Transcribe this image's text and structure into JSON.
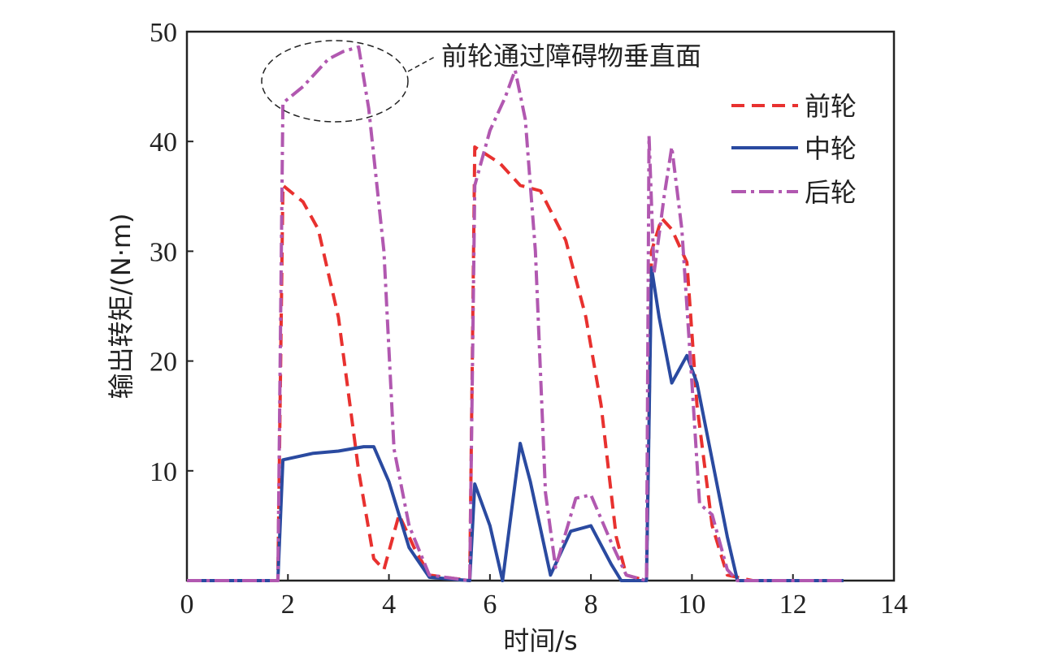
{
  "chart_data": {
    "type": "line",
    "xlabel": "时间/s",
    "ylabel": "输出转矩/(N·m)",
    "xlim": [
      0,
      14
    ],
    "ylim": [
      0,
      50
    ],
    "xticks": [
      0,
      2,
      4,
      6,
      8,
      10,
      12,
      14
    ],
    "yticks": [
      10,
      20,
      30,
      40,
      50
    ],
    "grid": false,
    "legend_position": "top-right",
    "annotation": {
      "text": "前轮通过障碍物垂直面",
      "target_x": 2.95,
      "target_y": 46.5
    },
    "colors": {
      "front": "#e8312f",
      "middle": "#2a4aa0",
      "rear": "#b158b0"
    },
    "series": [
      {
        "name": "前轮",
        "key": "front",
        "style": "dashed",
        "points": [
          [
            0,
            0
          ],
          [
            1.8,
            0
          ],
          [
            1.9,
            36
          ],
          [
            2.3,
            34.5
          ],
          [
            2.6,
            32
          ],
          [
            3.0,
            24
          ],
          [
            3.4,
            10
          ],
          [
            3.7,
            2
          ],
          [
            3.9,
            1
          ],
          [
            4.2,
            6
          ],
          [
            4.5,
            3
          ],
          [
            4.8,
            0.5
          ],
          [
            5.6,
            0
          ],
          [
            5.7,
            39.5
          ],
          [
            6.2,
            38
          ],
          [
            6.6,
            36
          ],
          [
            7.0,
            35.5
          ],
          [
            7.5,
            31
          ],
          [
            7.9,
            24
          ],
          [
            8.2,
            16
          ],
          [
            8.5,
            4
          ],
          [
            8.7,
            0.5
          ],
          [
            9.1,
            0
          ],
          [
            9.2,
            30
          ],
          [
            9.4,
            33
          ],
          [
            9.6,
            32
          ],
          [
            9.9,
            29
          ],
          [
            10.1,
            16
          ],
          [
            10.4,
            5
          ],
          [
            10.7,
            0.5
          ],
          [
            11.2,
            0
          ],
          [
            13.0,
            0
          ]
        ]
      },
      {
        "name": "中轮",
        "key": "middle",
        "style": "solid",
        "points": [
          [
            0,
            0
          ],
          [
            1.8,
            0
          ],
          [
            1.9,
            11
          ],
          [
            2.5,
            11.6
          ],
          [
            3.0,
            11.8
          ],
          [
            3.5,
            12.2
          ],
          [
            3.7,
            12.2
          ],
          [
            4.0,
            9
          ],
          [
            4.4,
            3
          ],
          [
            4.8,
            0.3
          ],
          [
            5.6,
            0
          ],
          [
            5.7,
            8.8
          ],
          [
            6.0,
            5
          ],
          [
            6.25,
            0
          ],
          [
            6.6,
            12.5
          ],
          [
            6.8,
            9
          ],
          [
            7.2,
            0.5
          ],
          [
            7.6,
            4.5
          ],
          [
            8.0,
            5
          ],
          [
            8.4,
            1.5
          ],
          [
            8.6,
            0
          ],
          [
            9.1,
            0
          ],
          [
            9.2,
            28.5
          ],
          [
            9.35,
            24
          ],
          [
            9.6,
            18
          ],
          [
            9.9,
            20.5
          ],
          [
            10.1,
            18
          ],
          [
            10.4,
            11
          ],
          [
            10.7,
            4
          ],
          [
            10.9,
            0
          ],
          [
            13.0,
            0
          ]
        ]
      },
      {
        "name": "后轮",
        "key": "rear",
        "style": "dashdot",
        "points": [
          [
            0,
            0
          ],
          [
            1.8,
            0
          ],
          [
            1.9,
            43.5
          ],
          [
            2.3,
            45
          ],
          [
            2.8,
            47.5
          ],
          [
            3.1,
            48.2
          ],
          [
            3.4,
            48.6
          ],
          [
            3.6,
            43
          ],
          [
            3.9,
            30
          ],
          [
            4.1,
            12
          ],
          [
            4.4,
            5
          ],
          [
            4.8,
            0.5
          ],
          [
            5.6,
            0
          ],
          [
            5.7,
            36
          ],
          [
            6.0,
            41
          ],
          [
            6.3,
            44
          ],
          [
            6.5,
            46.5
          ],
          [
            6.7,
            42
          ],
          [
            6.9,
            30
          ],
          [
            7.1,
            8
          ],
          [
            7.3,
            1.2
          ],
          [
            7.7,
            7.5
          ],
          [
            8.0,
            7.8
          ],
          [
            8.4,
            3.5
          ],
          [
            8.7,
            0.5
          ],
          [
            9.1,
            0
          ],
          [
            9.15,
            40.5
          ],
          [
            9.25,
            28
          ],
          [
            9.45,
            35
          ],
          [
            9.6,
            39.5
          ],
          [
            9.8,
            32
          ],
          [
            10.0,
            18
          ],
          [
            10.15,
            7
          ],
          [
            10.4,
            6
          ],
          [
            10.7,
            1
          ],
          [
            10.9,
            0
          ],
          [
            13.0,
            0
          ]
        ]
      }
    ]
  }
}
